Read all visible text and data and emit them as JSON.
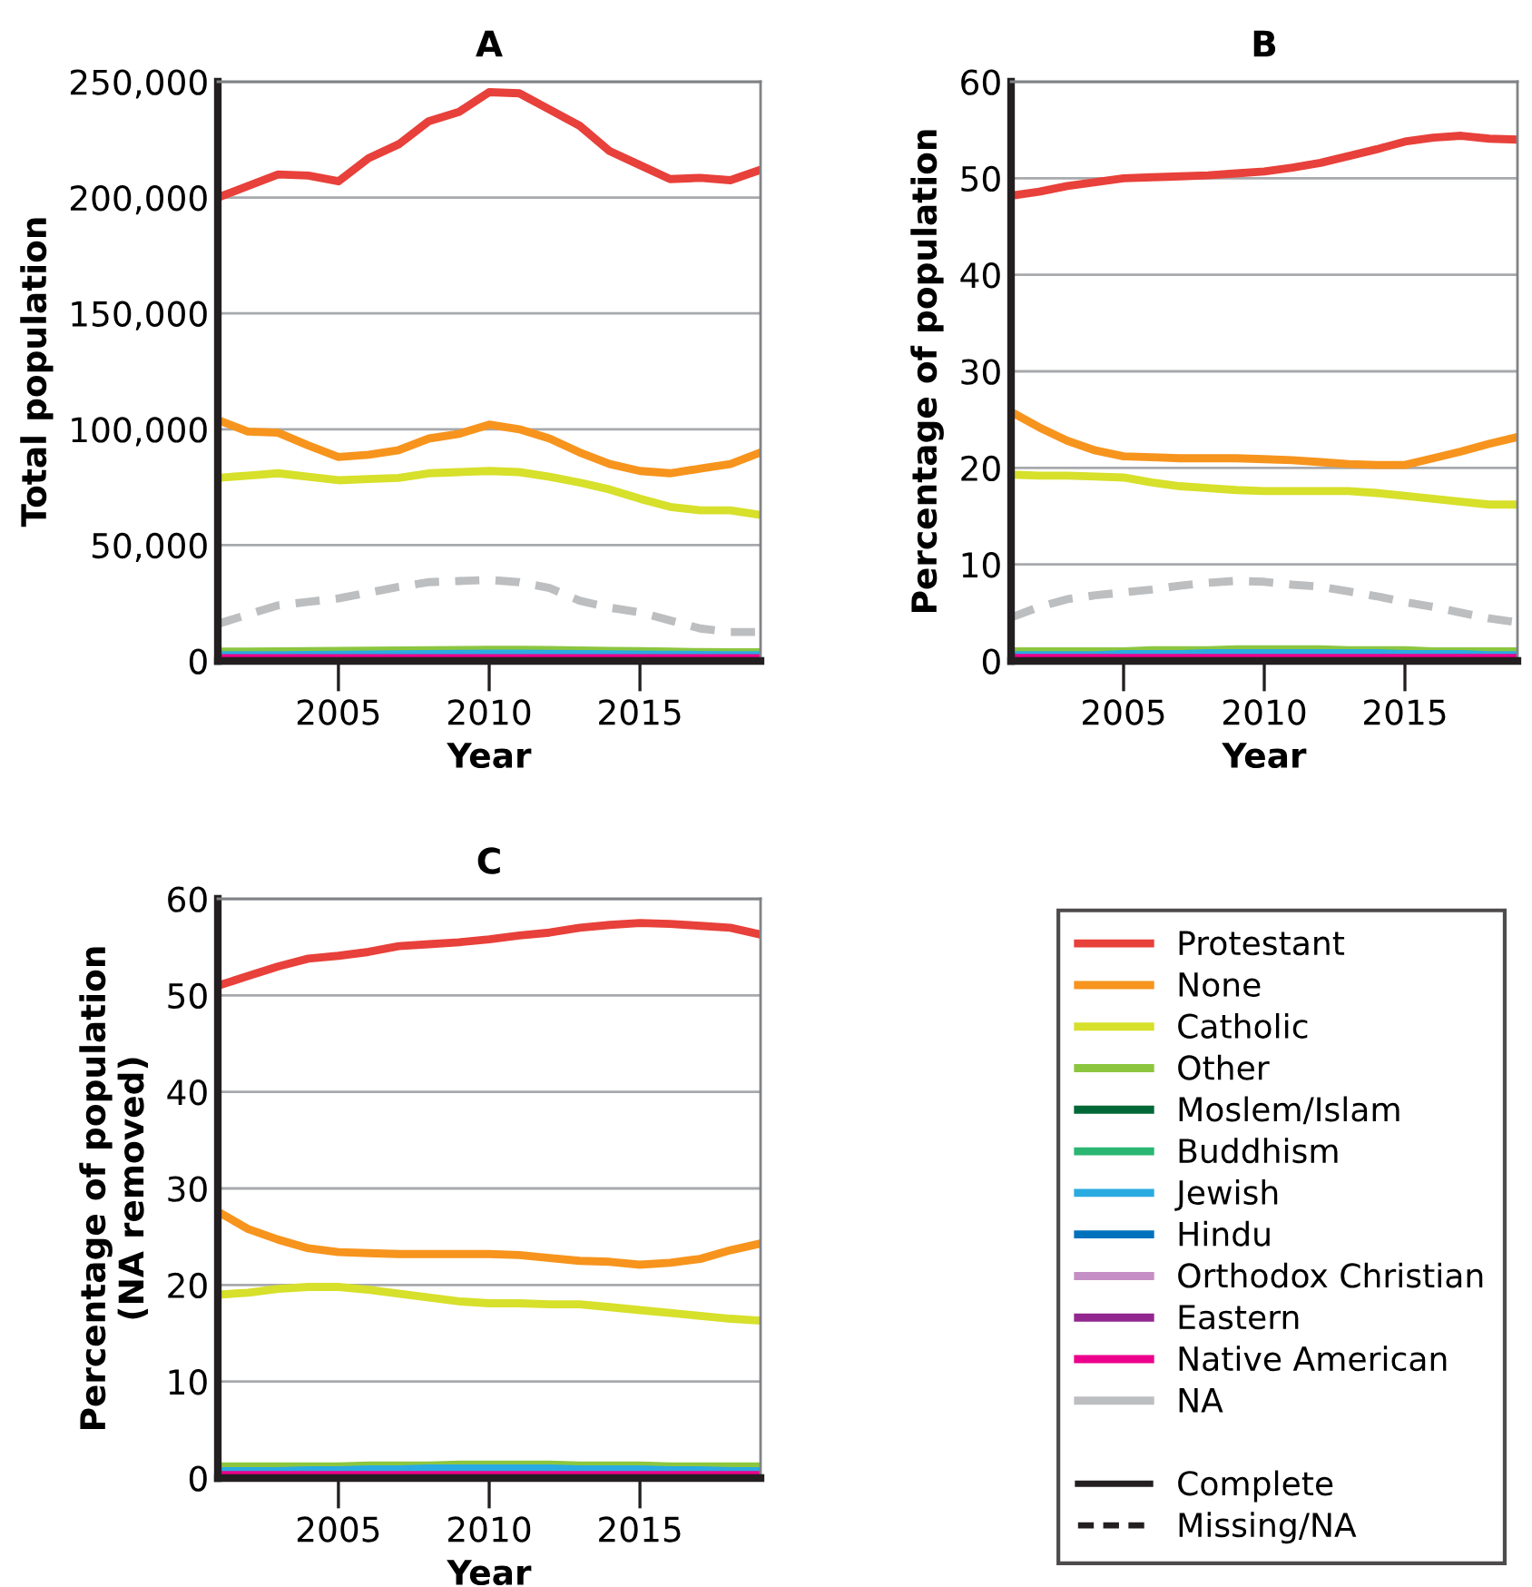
{
  "chart_data": [
    {
      "type": "line",
      "title": "A",
      "xlabel": "Year",
      "ylabel": "Total population",
      "x": [
        2001,
        2002,
        2003,
        2004,
        2005,
        2006,
        2007,
        2008,
        2009,
        2010,
        2011,
        2012,
        2013,
        2014,
        2015,
        2016,
        2017,
        2018,
        2019
      ],
      "xlim": [
        2001,
        2019
      ],
      "xticks": [
        2005,
        2010,
        2015
      ],
      "ylim": [
        0,
        250000
      ],
      "yticks": [
        {
          "value": 0,
          "label": "0"
        },
        {
          "value": 50000,
          "label": "50,000"
        },
        {
          "value": 100000,
          "label": "100,000"
        },
        {
          "value": 150000,
          "label": "150,000"
        },
        {
          "value": 200000,
          "label": "200,000"
        },
        {
          "value": 250000,
          "label": "250,000"
        }
      ],
      "grid": "y",
      "marker": "none",
      "legend": "bottom right",
      "annotations": [
        "Complete",
        "Missing/NA"
      ],
      "series": [
        {
          "name": "Protestant",
          "color": "#e8403a",
          "values": [
            200000,
            205000,
            210000,
            209500,
            207000,
            217000,
            223000,
            233000,
            237000,
            245500,
            245000,
            238000,
            231000,
            220000,
            214000,
            208000,
            208500,
            207500,
            212000
          ]
        },
        {
          "name": "None",
          "color": "#f7941d",
          "values": [
            104000,
            99000,
            98500,
            93000,
            88000,
            89000,
            91000,
            96000,
            98000,
            102000,
            100000,
            96000,
            90000,
            85000,
            82000,
            81000,
            83000,
            85000,
            90000
          ]
        },
        {
          "name": "Catholic",
          "color": "#d7e02a",
          "values": [
            79000,
            80000,
            81000,
            79500,
            78000,
            78500,
            79000,
            81000,
            81500,
            82000,
            81500,
            79500,
            77000,
            74000,
            70000,
            66500,
            65000,
            65000,
            63000
          ]
        },
        {
          "name": "Other",
          "color": "#8cc63f",
          "values": [
            4000,
            4000,
            4100,
            4200,
            4300,
            4400,
            4500,
            4600,
            4700,
            4800,
            4800,
            4700,
            4500,
            4300,
            4200,
            4000,
            3800,
            3700,
            3700
          ]
        },
        {
          "name": "Moslem/Islam",
          "color": "#006837",
          "values": [
            null,
            null,
            null,
            null,
            null,
            null,
            null,
            null,
            null,
            null,
            null,
            null,
            null,
            null,
            null,
            null,
            null,
            null,
            null
          ]
        },
        {
          "name": "Buddhism",
          "color": "#2bb673",
          "values": [
            null,
            null,
            null,
            null,
            null,
            null,
            null,
            null,
            null,
            null,
            null,
            null,
            null,
            null,
            null,
            null,
            null,
            null,
            null
          ]
        },
        {
          "name": "Jewish",
          "color": "#29abe2",
          "values": [
            2500,
            2500,
            2500,
            2600,
            2700,
            2800,
            2900,
            3000,
            3100,
            3200,
            3200,
            3100,
            3000,
            2900,
            2800,
            2700,
            2600,
            2500,
            2500
          ]
        },
        {
          "name": "Hindu",
          "color": "#0072bc",
          "values": [
            null,
            null,
            null,
            null,
            null,
            null,
            null,
            null,
            null,
            null,
            null,
            null,
            null,
            null,
            null,
            null,
            null,
            null,
            null
          ]
        },
        {
          "name": "Orthodox Christian",
          "color": "#c48fc4",
          "values": [
            null,
            null,
            null,
            null,
            null,
            null,
            null,
            null,
            null,
            null,
            null,
            null,
            null,
            null,
            null,
            null,
            null,
            null,
            null
          ]
        },
        {
          "name": "Eastern",
          "color": "#92278f",
          "values": [
            500,
            500,
            500,
            500,
            500,
            500,
            500,
            500,
            500,
            500,
            500,
            500,
            500,
            500,
            500,
            500,
            500,
            500,
            500
          ]
        },
        {
          "name": "Native American",
          "color": "#ec008c",
          "values": [
            1200,
            1200,
            1200,
            1200,
            1200,
            1200,
            1200,
            1200,
            1200,
            1200,
            1200,
            1200,
            1200,
            1200,
            1200,
            1200,
            1200,
            1200,
            1200
          ]
        },
        {
          "name": "NA",
          "color": "#bcbec0",
          "line_style": "dashed",
          "values": [
            16000,
            20000,
            24000,
            25500,
            27000,
            29500,
            32000,
            34000,
            34500,
            35000,
            34000,
            31500,
            26000,
            23000,
            21000,
            17500,
            14000,
            12500,
            12500
          ]
        }
      ]
    },
    {
      "type": "line",
      "title": "B",
      "xlabel": "Year",
      "ylabel": "Percentage of population",
      "x": [
        2001,
        2002,
        2003,
        2004,
        2005,
        2006,
        2007,
        2008,
        2009,
        2010,
        2011,
        2012,
        2013,
        2014,
        2015,
        2016,
        2017,
        2018,
        2019
      ],
      "xlim": [
        2001,
        2019
      ],
      "xticks": [
        2005,
        2010,
        2015
      ],
      "ylim": [
        0,
        60
      ],
      "yticks": [
        0,
        10,
        20,
        30,
        40,
        50,
        60
      ],
      "grid": "y",
      "marker": "none",
      "series": [
        {
          "name": "Protestant",
          "color": "#e8403a",
          "values": [
            48.2,
            48.6,
            49.2,
            49.6,
            50.0,
            50.1,
            50.2,
            50.3,
            50.5,
            50.7,
            51.1,
            51.6,
            52.3,
            53.0,
            53.8,
            54.2,
            54.4,
            54.1,
            54.0
          ]
        },
        {
          "name": "None",
          "color": "#f7941d",
          "values": [
            25.8,
            24.2,
            22.8,
            21.8,
            21.2,
            21.1,
            21.0,
            21.0,
            21.0,
            20.9,
            20.8,
            20.6,
            20.4,
            20.3,
            20.3,
            21.0,
            21.7,
            22.5,
            23.2
          ]
        },
        {
          "name": "Catholic",
          "color": "#d7e02a",
          "values": [
            19.3,
            19.2,
            19.2,
            19.1,
            19.0,
            18.5,
            18.1,
            17.9,
            17.7,
            17.6,
            17.6,
            17.6,
            17.6,
            17.4,
            17.1,
            16.8,
            16.5,
            16.2,
            16.2
          ]
        },
        {
          "name": "Other",
          "color": "#8cc63f",
          "values": [
            1.0,
            1.0,
            1.0,
            1.0,
            1.0,
            1.1,
            1.1,
            1.1,
            1.2,
            1.2,
            1.2,
            1.2,
            1.1,
            1.1,
            1.1,
            1.0,
            1.0,
            1.0,
            1.0
          ]
        },
        {
          "name": "Jewish",
          "color": "#29abe2",
          "values": [
            0.6,
            0.6,
            0.6,
            0.6,
            0.7,
            0.7,
            0.7,
            0.8,
            0.8,
            0.8,
            0.8,
            0.8,
            0.8,
            0.8,
            0.7,
            0.7,
            0.7,
            0.6,
            0.6
          ]
        },
        {
          "name": "Eastern",
          "color": "#92278f",
          "values": [
            0.1,
            0.1,
            0.1,
            0.1,
            0.1,
            0.1,
            0.1,
            0.1,
            0.1,
            0.1,
            0.1,
            0.1,
            0.1,
            0.1,
            0.1,
            0.1,
            0.1,
            0.1,
            0.1
          ]
        },
        {
          "name": "Native American",
          "color": "#ec008c",
          "values": [
            0.3,
            0.3,
            0.3,
            0.3,
            0.3,
            0.3,
            0.3,
            0.3,
            0.3,
            0.3,
            0.3,
            0.3,
            0.3,
            0.3,
            0.3,
            0.3,
            0.3,
            0.3,
            0.3
          ]
        },
        {
          "name": "NA",
          "color": "#bcbec0",
          "line_style": "dashed",
          "values": [
            4.5,
            5.6,
            6.4,
            6.8,
            7.1,
            7.4,
            7.8,
            8.1,
            8.3,
            8.2,
            7.9,
            7.7,
            7.2,
            6.7,
            6.1,
            5.6,
            5.0,
            4.4,
            4.0
          ]
        }
      ]
    },
    {
      "type": "line",
      "title": "C",
      "xlabel": "Year",
      "ylabel": "Percentage of population\n(NA removed)",
      "x": [
        2001,
        2002,
        2003,
        2004,
        2005,
        2006,
        2007,
        2008,
        2009,
        2010,
        2011,
        2012,
        2013,
        2014,
        2015,
        2016,
        2017,
        2018,
        2019
      ],
      "xlim": [
        2001,
        2019
      ],
      "xticks": [
        2005,
        2010,
        2015
      ],
      "ylim": [
        0,
        60
      ],
      "yticks": [
        0,
        10,
        20,
        30,
        40,
        50,
        60
      ],
      "grid": "y",
      "marker": "none",
      "series": [
        {
          "name": "Protestant",
          "color": "#e8403a",
          "values": [
            51.0,
            52.0,
            53.0,
            53.8,
            54.1,
            54.5,
            55.1,
            55.3,
            55.5,
            55.8,
            56.2,
            56.5,
            57.0,
            57.3,
            57.5,
            57.4,
            57.2,
            57.0,
            56.3
          ]
        },
        {
          "name": "None",
          "color": "#f7941d",
          "values": [
            27.6,
            25.8,
            24.7,
            23.8,
            23.4,
            23.3,
            23.2,
            23.2,
            23.2,
            23.2,
            23.1,
            22.8,
            22.5,
            22.4,
            22.1,
            22.3,
            22.7,
            23.6,
            24.3
          ]
        },
        {
          "name": "Catholic",
          "color": "#d7e02a",
          "values": [
            19.0,
            19.2,
            19.6,
            19.8,
            19.8,
            19.5,
            19.1,
            18.7,
            18.3,
            18.1,
            18.1,
            18.0,
            18.0,
            17.7,
            17.4,
            17.1,
            16.8,
            16.5,
            16.3
          ]
        },
        {
          "name": "Other",
          "color": "#8cc63f",
          "values": [
            1.2,
            1.2,
            1.2,
            1.2,
            1.2,
            1.3,
            1.3,
            1.3,
            1.4,
            1.4,
            1.4,
            1.4,
            1.3,
            1.3,
            1.3,
            1.2,
            1.2,
            1.2,
            1.2
          ]
        },
        {
          "name": "Jewish",
          "color": "#29abe2",
          "values": [
            0.7,
            0.7,
            0.7,
            0.8,
            0.8,
            0.9,
            0.9,
            1.0,
            1.0,
            1.0,
            1.0,
            1.0,
            0.9,
            0.9,
            0.9,
            0.8,
            0.8,
            0.7,
            0.7
          ]
        },
        {
          "name": "Eastern",
          "color": "#92278f",
          "values": [
            0.1,
            0.1,
            0.1,
            0.1,
            0.1,
            0.1,
            0.1,
            0.1,
            0.1,
            0.1,
            0.1,
            0.1,
            0.1,
            0.1,
            0.1,
            0.1,
            0.1,
            0.1,
            0.1
          ]
        },
        {
          "name": "Native American",
          "color": "#ec008c",
          "values": [
            0.3,
            0.3,
            0.3,
            0.3,
            0.3,
            0.3,
            0.3,
            0.3,
            0.3,
            0.3,
            0.3,
            0.3,
            0.3,
            0.3,
            0.3,
            0.3,
            0.3,
            0.3,
            0.3
          ]
        }
      ]
    }
  ]
}
